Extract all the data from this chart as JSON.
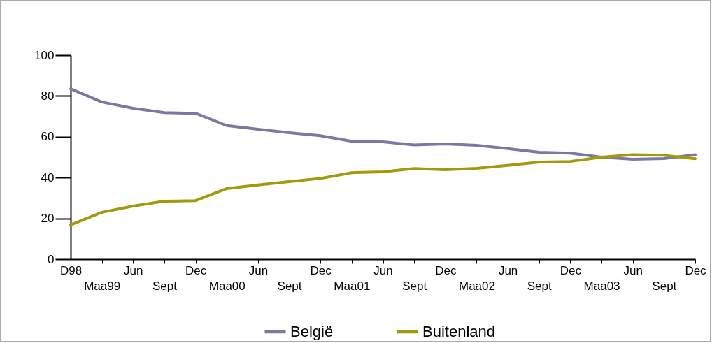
{
  "chart_data": {
    "type": "line",
    "categories": [
      "D98",
      "Maa99",
      "Jun",
      "Sept",
      "Dec",
      "Maa00",
      "Jun",
      "Sept",
      "Dec",
      "Maa01",
      "Jun",
      "Sept",
      "Dec",
      "Maa02",
      "Jun",
      "Sept",
      "Dec",
      "Maa03",
      "Jun",
      "Sept",
      "Dec"
    ],
    "series": [
      {
        "name": "België",
        "color": "#7b78a6",
        "values": [
          83.5,
          77,
          74,
          71.8,
          71.5,
          65.5,
          63.7,
          62,
          60.5,
          57.8,
          57.5,
          56,
          56.5,
          55.8,
          54.2,
          52.4,
          52,
          50,
          49,
          49.3,
          51.2
        ]
      },
      {
        "name": "Buitenland",
        "color": "#a39a0b",
        "values": [
          16.8,
          23,
          26,
          28.4,
          28.7,
          34.6,
          36.4,
          38,
          39.6,
          42.4,
          42.8,
          44.4,
          43.8,
          44.5,
          46,
          47.6,
          47.9,
          50,
          51.2,
          50.9,
          49.2
        ]
      }
    ],
    "ylim": [
      0,
      100
    ],
    "yticks": [
      0,
      20,
      40,
      60,
      80,
      100
    ],
    "legend": "bottom"
  }
}
